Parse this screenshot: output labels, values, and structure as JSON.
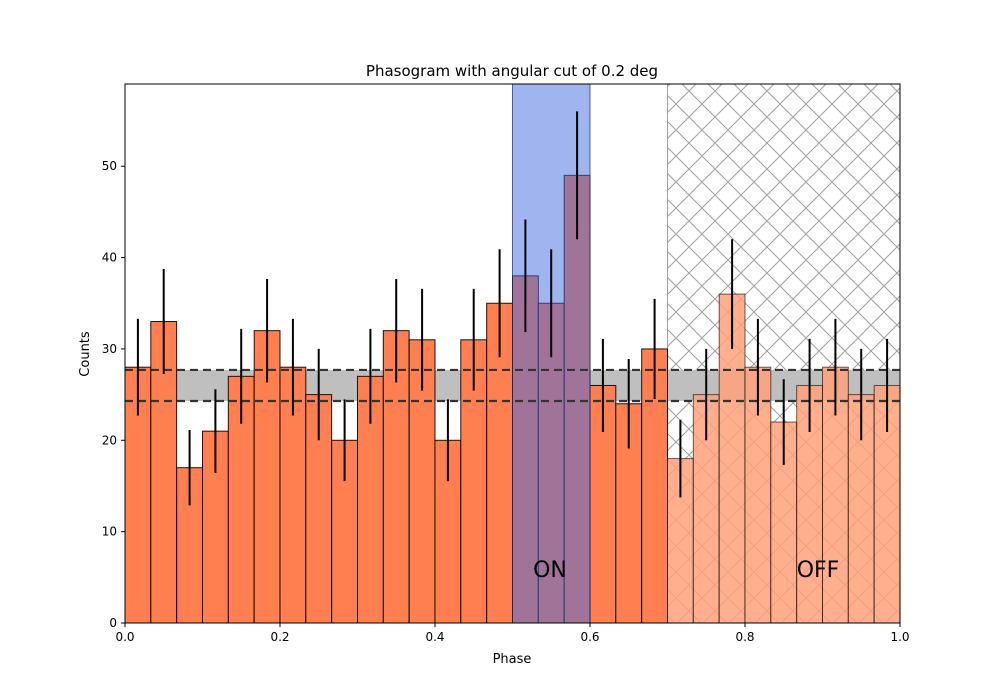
{
  "chart_data": {
    "type": "bar",
    "title": "Phasogram with angular cut of 0.2 deg",
    "xlabel": "Phase",
    "ylabel": "Counts",
    "xlim": [
      0,
      1
    ],
    "ylim": [
      0,
      59
    ],
    "grid": false,
    "x_ticks": [
      0,
      0.2,
      0.4,
      0.6,
      0.8,
      1.0
    ],
    "x_tick_labels": [
      "0.0",
      "0.2",
      "0.4",
      "0.6",
      "0.8",
      "1.0"
    ],
    "y_ticks": [
      0,
      10,
      20,
      30,
      40,
      50
    ],
    "y_tick_labels": [
      "0",
      "10",
      "20",
      "30",
      "40",
      "50"
    ],
    "bin_width": 0.0333,
    "bin_starts": [
      0,
      0.0333,
      0.0667,
      0.1,
      0.1333,
      0.1667,
      0.2,
      0.2333,
      0.2667,
      0.3,
      0.3333,
      0.3667,
      0.4,
      0.4333,
      0.4667,
      0.5,
      0.5333,
      0.5667,
      0.6,
      0.6333,
      0.6667,
      0.7,
      0.7333,
      0.7667,
      0.8,
      0.8333,
      0.8667,
      0.9,
      0.9333,
      0.9667
    ],
    "counts": [
      28,
      33,
      17,
      21,
      27,
      32,
      28,
      25,
      20,
      27,
      32,
      31,
      20,
      31,
      35,
      38,
      35,
      49,
      26,
      24,
      30,
      18,
      25,
      36,
      28,
      22,
      26,
      28,
      25,
      26
    ],
    "error_bar_note": "symmetric errors equal to sqrt(counts)",
    "background_band": {
      "lower": 24.3,
      "upper": 27.7
    },
    "on_region": {
      "range": [
        0.5,
        0.6
      ],
      "label": "ON"
    },
    "off_region": {
      "range": [
        0.7,
        1.0
      ],
      "label": "OFF"
    },
    "colors": {
      "bar": "#ff7f50",
      "bar_off": "#ffa07a",
      "bar_edge": "#000000",
      "on_fill": "#4169e1",
      "band_fill": "#bfbfbf",
      "band_line": "#333333",
      "hatch": "#a0a0a0",
      "error_bar": "#000000"
    }
  }
}
